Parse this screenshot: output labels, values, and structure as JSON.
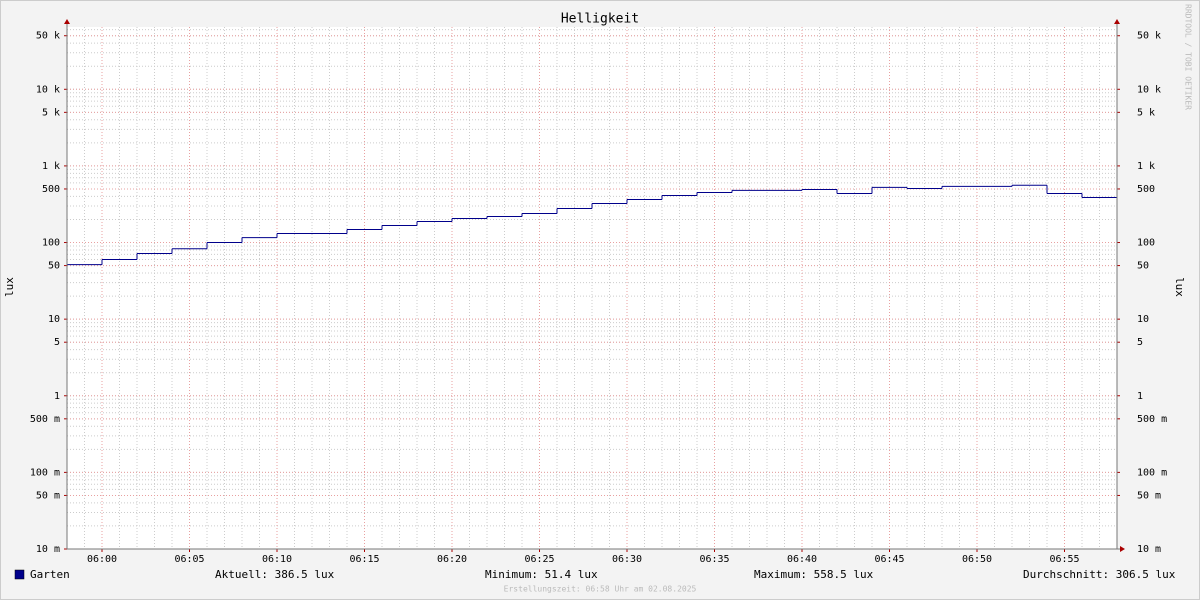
{
  "chart_data": {
    "type": "step",
    "title": "Helligkeit",
    "y_label": "lux",
    "watermark": "RRDTOOL / TOBI OETIKER",
    "footer": "Erstellungszeit: 06:58 Uhr am 02.08.2025",
    "log_scale": true,
    "grid": true,
    "xlim": [
      358,
      418
    ],
    "xticks": [
      {
        "value": 360,
        "label": "06:00"
      },
      {
        "value": 365,
        "label": "06:05"
      },
      {
        "value": 370,
        "label": "06:10"
      },
      {
        "value": 375,
        "label": "06:15"
      },
      {
        "value": 380,
        "label": "06:20"
      },
      {
        "value": 385,
        "label": "06:25"
      },
      {
        "value": 390,
        "label": "06:30"
      },
      {
        "value": 395,
        "label": "06:35"
      },
      {
        "value": 400,
        "label": "06:40"
      },
      {
        "value": 405,
        "label": "06:45"
      },
      {
        "value": 410,
        "label": "06:50"
      },
      {
        "value": 415,
        "label": "06:55"
      }
    ],
    "ylim": [
      0.01,
      65000
    ],
    "yticks": [
      {
        "value": 0.01,
        "label": "10 m"
      },
      {
        "value": 0.05,
        "label": "50 m"
      },
      {
        "value": 0.1,
        "label": "100 m"
      },
      {
        "value": 0.5,
        "label": "500 m"
      },
      1,
      5,
      10,
      50,
      100,
      500,
      {
        "value": 1000,
        "label": "1 k"
      },
      {
        "value": 5000,
        "label": "5 k"
      },
      {
        "value": 10000,
        "label": "10 k"
      },
      {
        "value": 50000,
        "label": "50 k"
      }
    ],
    "series": [
      {
        "name": "Garten",
        "color": "#00008b",
        "x": [
          358,
          360,
          362,
          364,
          366,
          368,
          370,
          374,
          376,
          378,
          380,
          382,
          384,
          386,
          388,
          390,
          392,
          394,
          396,
          400,
          402,
          404,
          406,
          408,
          412,
          414,
          416
        ],
        "values": [
          51.4,
          60,
          72,
          83,
          100,
          116,
          131,
          148,
          167,
          188,
          206,
          219,
          239,
          278,
          323,
          365,
          411,
          450,
          479,
          493,
          437,
          524,
          508,
          540,
          558.5,
          437,
          386.5
        ]
      }
    ],
    "stats": [
      {
        "label": "Aktuell:",
        "value": 386.5
      },
      {
        "label": "Minimum:",
        "value": 51.4
      },
      {
        "label": "Maximum:",
        "value": 558.5
      },
      {
        "label": "Durchschnitt:",
        "value": 306.5
      }
    ]
  }
}
